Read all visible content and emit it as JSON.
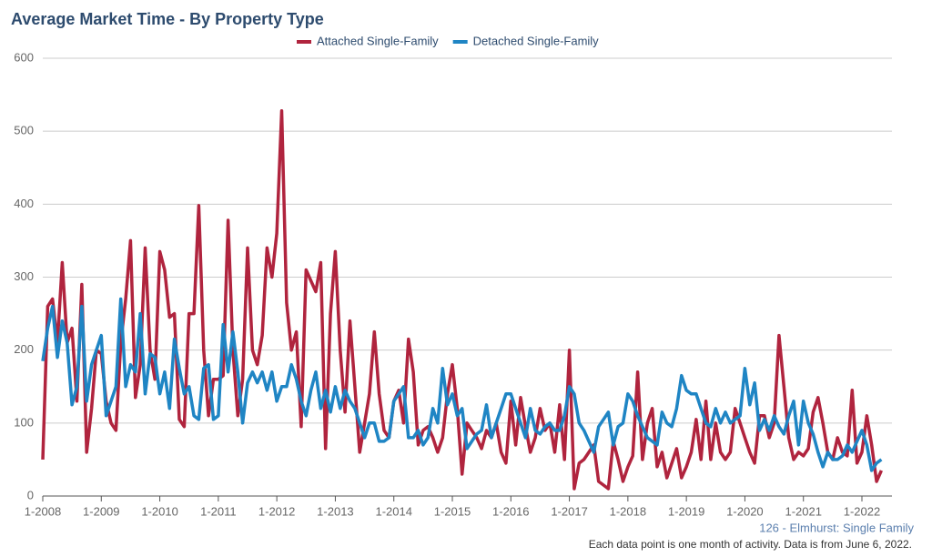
{
  "chart_data": {
    "type": "line",
    "title": "Average Market Time - By Property Type",
    "categories": [
      "1-2008",
      null,
      null,
      null,
      null,
      null,
      null,
      null,
      null,
      null,
      null,
      null,
      "1-2009",
      null,
      null,
      null,
      null,
      null,
      null,
      null,
      null,
      null,
      null,
      null,
      "1-2010",
      null,
      null,
      null,
      null,
      null,
      null,
      null,
      null,
      null,
      null,
      null,
      "1-2011",
      null,
      null,
      null,
      null,
      null,
      null,
      null,
      null,
      null,
      null,
      null,
      "1-2012",
      null,
      null,
      null,
      null,
      null,
      null,
      null,
      null,
      null,
      null,
      null,
      "1-2013",
      null,
      null,
      null,
      null,
      null,
      null,
      null,
      null,
      null,
      null,
      null,
      "1-2014",
      null,
      null,
      null,
      null,
      null,
      null,
      null,
      null,
      null,
      null,
      null,
      "1-2015",
      null,
      null,
      null,
      null,
      null,
      null,
      null,
      null,
      null,
      null,
      null,
      "1-2016",
      null,
      null,
      null,
      null,
      null,
      null,
      null,
      null,
      null,
      null,
      null,
      "1-2017",
      null,
      null,
      null,
      null,
      null,
      null,
      null,
      null,
      null,
      null,
      null,
      "1-2018",
      null,
      null,
      null,
      null,
      null,
      null,
      null,
      null,
      null,
      null,
      null,
      "1-2019",
      null,
      null,
      null,
      null,
      null,
      null,
      null,
      null,
      null,
      null,
      null,
      "1-2020",
      null,
      null,
      null,
      null,
      null,
      null,
      null,
      null,
      null,
      null,
      null,
      "1-2021",
      null,
      null,
      null,
      null,
      null,
      null,
      null,
      null,
      null,
      null,
      null,
      "1-2022",
      null,
      null,
      null,
      null
    ],
    "series": [
      {
        "name": "Attached Single-Family",
        "color": "#b0243e",
        "values": [
          50,
          260,
          270,
          210,
          320,
          210,
          230,
          130,
          290,
          60,
          120,
          200,
          195,
          130,
          100,
          90,
          210,
          270,
          350,
          135,
          180,
          340,
          200,
          160,
          335,
          310,
          245,
          250,
          105,
          95,
          250,
          250,
          398,
          200,
          110,
          160,
          160,
          165,
          378,
          200,
          110,
          160,
          340,
          200,
          180,
          220,
          340,
          300,
          360,
          528,
          265,
          200,
          225,
          95,
          310,
          295,
          280,
          320,
          65,
          250,
          335,
          200,
          115,
          240,
          150,
          60,
          100,
          140,
          225,
          140,
          90,
          80,
          130,
          145,
          100,
          215,
          170,
          70,
          90,
          95,
          80,
          60,
          80,
          140,
          180,
          120,
          30,
          100,
          90,
          80,
          65,
          90,
          80,
          100,
          60,
          45,
          130,
          70,
          135,
          95,
          60,
          80,
          120,
          90,
          100,
          60,
          125,
          50,
          200,
          10,
          45,
          50,
          60,
          70,
          20,
          15,
          10,
          75,
          50,
          20,
          40,
          55,
          170,
          50,
          100,
          120,
          40,
          60,
          25,
          45,
          65,
          25,
          40,
          60,
          105,
          50,
          130,
          50,
          100,
          60,
          50,
          60,
          120,
          100,
          80,
          60,
          45,
          110,
          110,
          80,
          100,
          220,
          150,
          80,
          50,
          60,
          55,
          65,
          115,
          135,
          100,
          60,
          50,
          80,
          60,
          55,
          145,
          45,
          60,
          110,
          70,
          20,
          35
        ]
      },
      {
        "name": "Detached Single-Family",
        "color": "#1f85c4",
        "values": [
          185,
          230,
          260,
          190,
          240,
          210,
          125,
          150,
          260,
          130,
          180,
          200,
          220,
          110,
          130,
          150,
          270,
          150,
          180,
          170,
          250,
          140,
          195,
          190,
          140,
          170,
          120,
          215,
          175,
          140,
          150,
          110,
          105,
          175,
          180,
          105,
          110,
          235,
          170,
          225,
          170,
          100,
          155,
          170,
          155,
          170,
          145,
          170,
          130,
          150,
          150,
          180,
          160,
          130,
          110,
          145,
          170,
          120,
          145,
          115,
          150,
          120,
          145,
          130,
          120,
          100,
          80,
          100,
          100,
          75,
          75,
          80,
          130,
          140,
          150,
          80,
          80,
          90,
          70,
          80,
          120,
          100,
          175,
          125,
          140,
          110,
          120,
          65,
          75,
          85,
          90,
          125,
          80,
          100,
          120,
          140,
          140,
          120,
          100,
          80,
          120,
          90,
          85,
          95,
          100,
          90,
          90,
          110,
          150,
          140,
          100,
          90,
          75,
          60,
          95,
          105,
          115,
          70,
          95,
          100,
          140,
          130,
          110,
          95,
          80,
          75,
          70,
          115,
          100,
          95,
          120,
          165,
          145,
          140,
          140,
          120,
          100,
          95,
          120,
          100,
          115,
          100,
          105,
          110,
          175,
          125,
          155,
          90,
          105,
          90,
          110,
          95,
          85,
          110,
          130,
          70,
          130,
          100,
          85,
          60,
          40,
          60,
          50,
          50,
          55,
          70,
          60,
          75,
          90,
          70,
          35,
          45,
          50
        ]
      }
    ],
    "ylim": [
      0,
      600
    ],
    "yticks": [
      0,
      100,
      200,
      300,
      400,
      500,
      600
    ],
    "grid": true,
    "legend": "top",
    "source": "126 - Elmhurst: Single Family",
    "note": "Each data point is one month of activity. Data is from June 6, 2022."
  }
}
